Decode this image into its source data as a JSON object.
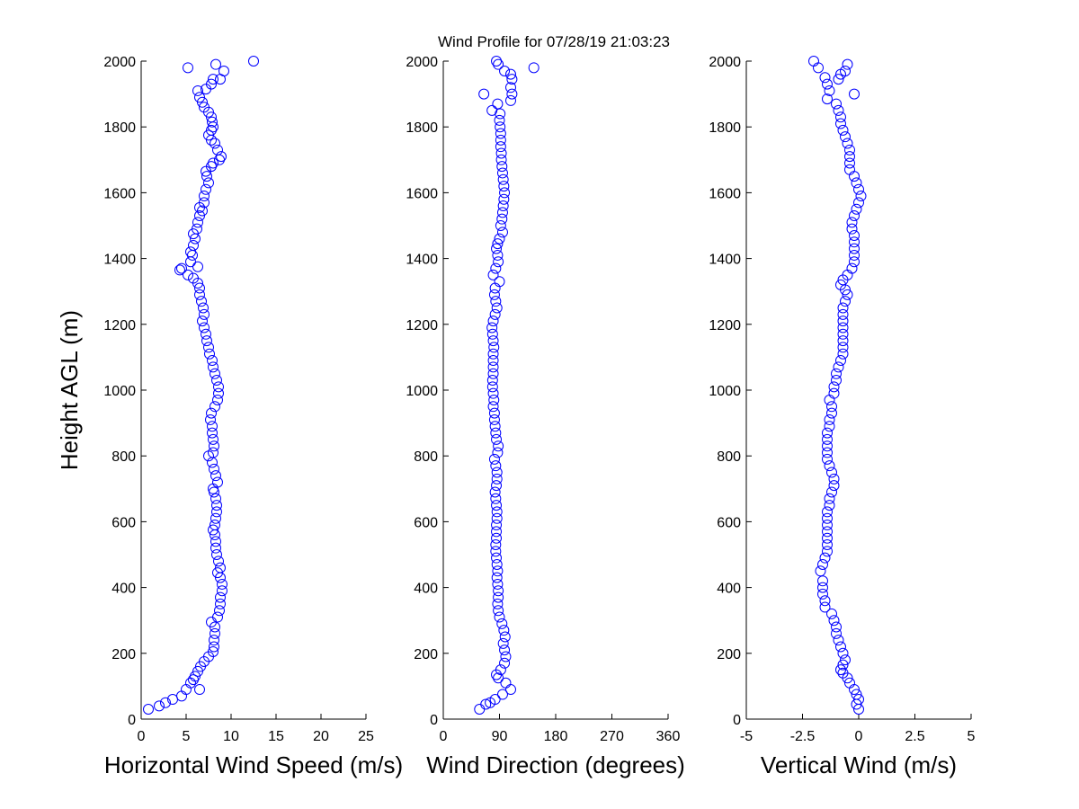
{
  "title": "Wind Profile for  07/28/19 21:03:23",
  "colors": {
    "marker": "#0000ff",
    "axis": "#000000",
    "background": "#ffffff"
  },
  "chart_data": [
    {
      "type": "scatter",
      "id": "speed",
      "xlabel": "Horizontal Wind Speed (m/s)",
      "ylabel": "Height AGL (m)",
      "xlim": [
        0,
        25
      ],
      "ylim": [
        0,
        2000
      ],
      "xticks": [
        0,
        5,
        10,
        15,
        20,
        25
      ],
      "xtick_labels": [
        "0",
        "5",
        "10",
        "15",
        "20",
        "25"
      ],
      "yticks": [
        0,
        200,
        400,
        600,
        800,
        1000,
        1200,
        1400,
        1600,
        1800,
        2000
      ],
      "ytick_labels": [
        "0",
        "200",
        "400",
        "600",
        "800",
        "1000",
        "1200",
        "1400",
        "1600",
        "1800",
        "2000"
      ],
      "points": [
        [
          0.8,
          30
        ],
        [
          2.0,
          40
        ],
        [
          2.7,
          50
        ],
        [
          3.5,
          60
        ],
        [
          4.5,
          70
        ],
        [
          5.0,
          90
        ],
        [
          6.5,
          90
        ],
        [
          5.5,
          110
        ],
        [
          5.8,
          120
        ],
        [
          6.0,
          130
        ],
        [
          6.3,
          145
        ],
        [
          6.6,
          160
        ],
        [
          7.0,
          175
        ],
        [
          7.5,
          190
        ],
        [
          8.0,
          205
        ],
        [
          8.1,
          220
        ],
        [
          8.1,
          240
        ],
        [
          8.2,
          260
        ],
        [
          8.2,
          280
        ],
        [
          7.8,
          295
        ],
        [
          8.5,
          310
        ],
        [
          8.7,
          330
        ],
        [
          8.8,
          350
        ],
        [
          8.8,
          370
        ],
        [
          9.0,
          390
        ],
        [
          9.0,
          410
        ],
        [
          8.8,
          430
        ],
        [
          8.5,
          445
        ],
        [
          8.8,
          460
        ],
        [
          8.6,
          480
        ],
        [
          8.4,
          500
        ],
        [
          8.3,
          520
        ],
        [
          8.3,
          540
        ],
        [
          8.2,
          560
        ],
        [
          8.0,
          575
        ],
        [
          8.2,
          590
        ],
        [
          8.3,
          610
        ],
        [
          8.4,
          630
        ],
        [
          8.4,
          650
        ],
        [
          8.3,
          670
        ],
        [
          8.1,
          690
        ],
        [
          8.0,
          700
        ],
        [
          8.5,
          720
        ],
        [
          8.3,
          740
        ],
        [
          8.1,
          760
        ],
        [
          7.9,
          780
        ],
        [
          7.5,
          800
        ],
        [
          8.0,
          810
        ],
        [
          8.1,
          830
        ],
        [
          8.0,
          850
        ],
        [
          7.9,
          870
        ],
        [
          7.9,
          890
        ],
        [
          7.7,
          910
        ],
        [
          7.8,
          930
        ],
        [
          8.2,
          950
        ],
        [
          8.5,
          970
        ],
        [
          8.6,
          990
        ],
        [
          8.6,
          1010
        ],
        [
          8.4,
          1030
        ],
        [
          8.2,
          1050
        ],
        [
          8.0,
          1070
        ],
        [
          7.9,
          1090
        ],
        [
          7.6,
          1110
        ],
        [
          7.5,
          1130
        ],
        [
          7.3,
          1150
        ],
        [
          7.2,
          1170
        ],
        [
          7.0,
          1190
        ],
        [
          6.8,
          1210
        ],
        [
          7.0,
          1230
        ],
        [
          6.9,
          1250
        ],
        [
          6.7,
          1270
        ],
        [
          6.5,
          1290
        ],
        [
          6.5,
          1310
        ],
        [
          6.3,
          1325
        ],
        [
          5.8,
          1340
        ],
        [
          5.2,
          1350
        ],
        [
          4.3,
          1365
        ],
        [
          4.5,
          1370
        ],
        [
          6.3,
          1375
        ],
        [
          5.5,
          1390
        ],
        [
          5.7,
          1410
        ],
        [
          5.5,
          1420
        ],
        [
          5.8,
          1440
        ],
        [
          6.0,
          1460
        ],
        [
          5.8,
          1475
        ],
        [
          6.2,
          1490
        ],
        [
          6.3,
          1510
        ],
        [
          6.5,
          1530
        ],
        [
          6.8,
          1545
        ],
        [
          6.5,
          1555
        ],
        [
          7.0,
          1570
        ],
        [
          7.0,
          1590
        ],
        [
          7.2,
          1610
        ],
        [
          7.5,
          1630
        ],
        [
          7.3,
          1650
        ],
        [
          7.2,
          1665
        ],
        [
          7.8,
          1680
        ],
        [
          8.0,
          1690
        ],
        [
          8.7,
          1700
        ],
        [
          8.9,
          1710
        ],
        [
          8.5,
          1730
        ],
        [
          8.2,
          1750
        ],
        [
          7.8,
          1760
        ],
        [
          7.5,
          1775
        ],
        [
          7.8,
          1790
        ],
        [
          8.0,
          1800
        ],
        [
          7.9,
          1815
        ],
        [
          7.8,
          1830
        ],
        [
          7.5,
          1845
        ],
        [
          7.0,
          1860
        ],
        [
          6.8,
          1875
        ],
        [
          6.5,
          1890
        ],
        [
          6.3,
          1910
        ],
        [
          7.2,
          1915
        ],
        [
          7.8,
          1930
        ],
        [
          8.0,
          1945
        ],
        [
          8.8,
          1945
        ],
        [
          9.2,
          1970
        ],
        [
          8.3,
          1990
        ],
        [
          5.2,
          1980
        ],
        [
          12.5,
          2000
        ]
      ]
    },
    {
      "type": "scatter",
      "id": "direction",
      "xlabel": "Wind Direction (degrees)",
      "ylabel": "",
      "xlim": [
        0,
        360
      ],
      "ylim": [
        0,
        2000
      ],
      "xticks": [
        0,
        90,
        180,
        270,
        360
      ],
      "xtick_labels": [
        "0",
        "90",
        "180",
        "270",
        "360"
      ],
      "yticks": [
        0,
        200,
        400,
        600,
        800,
        1000,
        1200,
        1400,
        1600,
        1800,
        2000
      ],
      "ytick_labels": [
        "0",
        "200",
        "400",
        "600",
        "800",
        "1000",
        "1200",
        "1400",
        "1600",
        "1800",
        "2000"
      ],
      "points": [
        [
          58,
          30
        ],
        [
          68,
          45
        ],
        [
          75,
          50
        ],
        [
          83,
          60
        ],
        [
          95,
          75
        ],
        [
          108,
          90
        ],
        [
          100,
          110
        ],
        [
          88,
          125
        ],
        [
          85,
          135
        ],
        [
          92,
          150
        ],
        [
          98,
          170
        ],
        [
          100,
          190
        ],
        [
          98,
          210
        ],
        [
          96,
          230
        ],
        [
          99,
          250
        ],
        [
          97,
          270
        ],
        [
          94,
          290
        ],
        [
          90,
          310
        ],
        [
          88,
          330
        ],
        [
          87,
          350
        ],
        [
          88,
          370
        ],
        [
          88,
          390
        ],
        [
          87,
          410
        ],
        [
          86,
          430
        ],
        [
          87,
          450
        ],
        [
          86,
          470
        ],
        [
          85,
          490
        ],
        [
          84,
          510
        ],
        [
          84,
          530
        ],
        [
          85,
          550
        ],
        [
          85,
          570
        ],
        [
          85,
          590
        ],
        [
          86,
          610
        ],
        [
          86,
          630
        ],
        [
          85,
          650
        ],
        [
          84,
          670
        ],
        [
          83,
          690
        ],
        [
          85,
          710
        ],
        [
          86,
          730
        ],
        [
          86,
          750
        ],
        [
          84,
          770
        ],
        [
          82,
          790
        ],
        [
          87,
          810
        ],
        [
          88,
          830
        ],
        [
          85,
          850
        ],
        [
          84,
          870
        ],
        [
          83,
          890
        ],
        [
          82,
          910
        ],
        [
          82,
          930
        ],
        [
          80,
          950
        ],
        [
          81,
          970
        ],
        [
          80,
          990
        ],
        [
          79,
          1010
        ],
        [
          79,
          1030
        ],
        [
          80,
          1050
        ],
        [
          80,
          1070
        ],
        [
          80,
          1090
        ],
        [
          80,
          1110
        ],
        [
          81,
          1130
        ],
        [
          80,
          1150
        ],
        [
          79,
          1170
        ],
        [
          78,
          1190
        ],
        [
          80,
          1210
        ],
        [
          83,
          1230
        ],
        [
          86,
          1250
        ],
        [
          84,
          1270
        ],
        [
          82,
          1290
        ],
        [
          83,
          1310
        ],
        [
          90,
          1330
        ],
        [
          80,
          1350
        ],
        [
          84,
          1370
        ],
        [
          88,
          1390
        ],
        [
          87,
          1410
        ],
        [
          85,
          1430
        ],
        [
          87,
          1445
        ],
        [
          90,
          1460
        ],
        [
          95,
          1480
        ],
        [
          92,
          1500
        ],
        [
          94,
          1520
        ],
        [
          95,
          1540
        ],
        [
          96,
          1560
        ],
        [
          97,
          1580
        ],
        [
          98,
          1600
        ],
        [
          97,
          1620
        ],
        [
          96,
          1640
        ],
        [
          95,
          1660
        ],
        [
          94,
          1680
        ],
        [
          93,
          1700
        ],
        [
          93,
          1720
        ],
        [
          92,
          1740
        ],
        [
          92,
          1760
        ],
        [
          92,
          1780
        ],
        [
          91,
          1800
        ],
        [
          90,
          1820
        ],
        [
          91,
          1840
        ],
        [
          78,
          1850
        ],
        [
          87,
          1870
        ],
        [
          65,
          1900
        ],
        [
          108,
          1880
        ],
        [
          110,
          1900
        ],
        [
          108,
          1920
        ],
        [
          110,
          1945
        ],
        [
          108,
          1960
        ],
        [
          98,
          1970
        ],
        [
          85,
          2000
        ],
        [
          88,
          1990
        ],
        [
          145,
          1980
        ]
      ]
    },
    {
      "type": "scatter",
      "id": "vertical",
      "xlabel": "Vertical Wind (m/s)",
      "ylabel": "",
      "xlim": [
        -5,
        5
      ],
      "ylim": [
        0,
        2000
      ],
      "xticks": [
        -5,
        -2.5,
        0,
        2.5,
        5
      ],
      "xtick_labels": [
        "-5",
        "-2.5",
        "0",
        "2.5",
        "5"
      ],
      "yticks": [
        0,
        200,
        400,
        600,
        800,
        1000,
        1200,
        1400,
        1600,
        1800,
        2000
      ],
      "ytick_labels": [
        "0",
        "200",
        "400",
        "600",
        "800",
        "1000",
        "1200",
        "1400",
        "1600",
        "1800",
        "2000"
      ],
      "points": [
        [
          0.0,
          30
        ],
        [
          -0.1,
          45
        ],
        [
          0.0,
          60
        ],
        [
          -0.1,
          75
        ],
        [
          -0.2,
          90
        ],
        [
          -0.4,
          110
        ],
        [
          -0.5,
          125
        ],
        [
          -0.7,
          140
        ],
        [
          -0.8,
          150
        ],
        [
          -0.7,
          165
        ],
        [
          -0.6,
          180
        ],
        [
          -0.7,
          200
        ],
        [
          -0.8,
          220
        ],
        [
          -0.9,
          240
        ],
        [
          -1.0,
          260
        ],
        [
          -1.0,
          280
        ],
        [
          -1.1,
          300
        ],
        [
          -1.2,
          320
        ],
        [
          -1.5,
          340
        ],
        [
          -1.5,
          360
        ],
        [
          -1.6,
          380
        ],
        [
          -1.6,
          400
        ],
        [
          -1.6,
          420
        ],
        [
          -1.7,
          450
        ],
        [
          -1.6,
          470
        ],
        [
          -1.5,
          490
        ],
        [
          -1.4,
          510
        ],
        [
          -1.4,
          530
        ],
        [
          -1.4,
          550
        ],
        [
          -1.4,
          570
        ],
        [
          -1.4,
          590
        ],
        [
          -1.4,
          610
        ],
        [
          -1.4,
          630
        ],
        [
          -1.3,
          650
        ],
        [
          -1.3,
          670
        ],
        [
          -1.2,
          690
        ],
        [
          -1.1,
          710
        ],
        [
          -1.1,
          730
        ],
        [
          -1.2,
          750
        ],
        [
          -1.3,
          770
        ],
        [
          -1.4,
          790
        ],
        [
          -1.4,
          810
        ],
        [
          -1.4,
          830
        ],
        [
          -1.4,
          850
        ],
        [
          -1.4,
          870
        ],
        [
          -1.3,
          890
        ],
        [
          -1.3,
          910
        ],
        [
          -1.2,
          930
        ],
        [
          -1.2,
          950
        ],
        [
          -1.3,
          970
        ],
        [
          -1.1,
          990
        ],
        [
          -1.1,
          1010
        ],
        [
          -1.0,
          1030
        ],
        [
          -1.0,
          1050
        ],
        [
          -0.9,
          1070
        ],
        [
          -0.8,
          1090
        ],
        [
          -0.7,
          1110
        ],
        [
          -0.7,
          1130
        ],
        [
          -0.7,
          1150
        ],
        [
          -0.7,
          1170
        ],
        [
          -0.7,
          1190
        ],
        [
          -0.7,
          1210
        ],
        [
          -0.7,
          1230
        ],
        [
          -0.7,
          1250
        ],
        [
          -0.6,
          1270
        ],
        [
          -0.5,
          1290
        ],
        [
          -0.6,
          1305
        ],
        [
          -0.8,
          1320
        ],
        [
          -0.7,
          1335
        ],
        [
          -0.5,
          1350
        ],
        [
          -0.3,
          1370
        ],
        [
          -0.2,
          1390
        ],
        [
          -0.2,
          1410
        ],
        [
          -0.2,
          1430
        ],
        [
          -0.2,
          1450
        ],
        [
          -0.2,
          1470
        ],
        [
          -0.3,
          1490
        ],
        [
          -0.3,
          1510
        ],
        [
          -0.2,
          1530
        ],
        [
          -0.1,
          1550
        ],
        [
          0.0,
          1570
        ],
        [
          0.1,
          1590
        ],
        [
          0.0,
          1610
        ],
        [
          -0.1,
          1630
        ],
        [
          -0.2,
          1650
        ],
        [
          -0.4,
          1670
        ],
        [
          -0.4,
          1690
        ],
        [
          -0.4,
          1710
        ],
        [
          -0.4,
          1730
        ],
        [
          -0.5,
          1750
        ],
        [
          -0.6,
          1770
        ],
        [
          -0.7,
          1790
        ],
        [
          -0.8,
          1810
        ],
        [
          -0.8,
          1830
        ],
        [
          -0.9,
          1850
        ],
        [
          -1.0,
          1870
        ],
        [
          -1.4,
          1885
        ],
        [
          -1.3,
          1910
        ],
        [
          -1.4,
          1930
        ],
        [
          -1.5,
          1950
        ],
        [
          -0.9,
          1945
        ],
        [
          -0.8,
          1960
        ],
        [
          -0.6,
          1970
        ],
        [
          -0.5,
          1990
        ],
        [
          -1.8,
          1980
        ],
        [
          -2.0,
          2000
        ],
        [
          -0.2,
          1900
        ]
      ]
    }
  ]
}
